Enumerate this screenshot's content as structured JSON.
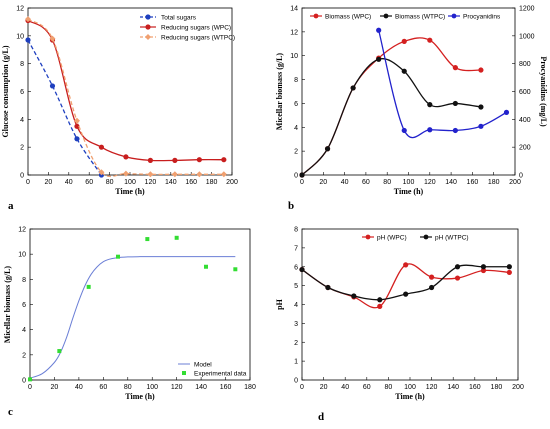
{
  "chart_data": [
    {
      "type": "line",
      "panel_label": "a",
      "xlabel": "Time (h)",
      "ylabel": "Glucose consumption (g/L)",
      "xlim": [
        0,
        200
      ],
      "ylim": [
        0,
        12
      ],
      "xticks": [
        0,
        20,
        40,
        60,
        80,
        100,
        120,
        140,
        160,
        180,
        200
      ],
      "yticks": [
        0,
        2,
        4,
        6,
        8,
        10,
        12
      ],
      "legend_position": "top-right",
      "series": [
        {
          "name": "Total sugars",
          "color": "#1e3fbf",
          "dash": true,
          "marker": "circle",
          "x": [
            0,
            24,
            48,
            72
          ],
          "y": [
            9.7,
            6.4,
            2.6,
            0.0
          ]
        },
        {
          "name": "Reducing sugars (WPC)",
          "color": "#c81e1e",
          "dash": false,
          "marker": "circle",
          "x": [
            0,
            24,
            48,
            72,
            96,
            120,
            144,
            168,
            192
          ],
          "y": [
            11.1,
            9.7,
            3.5,
            2.0,
            1.3,
            1.05,
            1.05,
            1.1,
            1.1
          ]
        },
        {
          "name": "Reducing sugars (WTPC)",
          "color": "#f0a070",
          "dash": true,
          "marker": "diamond",
          "x": [
            0,
            24,
            48,
            72,
            96,
            120,
            144,
            168,
            192
          ],
          "y": [
            11.2,
            9.8,
            3.9,
            0.2,
            0.1,
            0.05,
            0.05,
            0.05,
            0.05
          ]
        }
      ]
    },
    {
      "type": "line",
      "panel_label": "b",
      "xlabel": "Time (h)",
      "ylabel": "Micellar biomass (g/L)",
      "ylabel_right": "Procyanidins (mg/L)",
      "xlim": [
        0,
        200
      ],
      "ylim": [
        0,
        14
      ],
      "ylim_right": [
        0,
        1200
      ],
      "xticks": [
        0,
        20,
        40,
        60,
        80,
        100,
        120,
        140,
        160,
        180,
        200
      ],
      "yticks": [
        0,
        2,
        4,
        6,
        8,
        10,
        12,
        14
      ],
      "yticks_right": [
        0,
        200,
        400,
        600,
        800,
        1000,
        1200
      ],
      "legend_position": "top",
      "series": [
        {
          "name": "Biomass (WPC)",
          "color": "#d42020",
          "axis": "left",
          "x": [
            0,
            24,
            48,
            72,
            96,
            120,
            144,
            168
          ],
          "y": [
            0,
            2.2,
            7.3,
            9.8,
            11.2,
            11.3,
            9.0,
            8.8
          ]
        },
        {
          "name": "Biomass (WTPC)",
          "color": "#111111",
          "axis": "left",
          "x": [
            0,
            24,
            48,
            72,
            96,
            120,
            144,
            168
          ],
          "y": [
            0,
            2.2,
            7.3,
            9.7,
            8.7,
            5.9,
            6.0,
            5.7
          ]
        },
        {
          "name": "Procyanidins",
          "color": "#2222cc",
          "axis": "right",
          "x": [
            72,
            96,
            120,
            144,
            168,
            192
          ],
          "y": [
            1040,
            320,
            325,
            320,
            350,
            450
          ]
        }
      ]
    },
    {
      "type": "scatter",
      "panel_label": "c",
      "xlabel": "Time (h)",
      "ylabel": "Micellar biomass (g/L)",
      "xlim": [
        0,
        180
      ],
      "ylim": [
        0,
        12
      ],
      "xticks": [
        0,
        20,
        40,
        60,
        80,
        100,
        120,
        140,
        160,
        180
      ],
      "yticks": [
        0,
        2,
        4,
        6,
        8,
        10,
        12
      ],
      "legend_position": "bottom-right",
      "series": [
        {
          "name": "Model",
          "color": "#6b7fd6",
          "kind": "curve",
          "x": [
            0,
            10,
            20,
            25,
            30,
            35,
            40,
            45,
            50,
            55,
            60,
            65,
            70,
            80,
            90,
            100,
            120,
            140,
            160,
            168
          ],
          "y": [
            0.15,
            0.5,
            1.4,
            2.2,
            3.4,
            4.9,
            6.3,
            7.5,
            8.4,
            9.0,
            9.4,
            9.6,
            9.7,
            9.78,
            9.8,
            9.8,
            9.8,
            9.8,
            9.8,
            9.8
          ]
        },
        {
          "name": "Experimental data",
          "color": "#33dd33",
          "kind": "points",
          "x": [
            0,
            24,
            48,
            72,
            96,
            120,
            144,
            168
          ],
          "y": [
            0.05,
            2.3,
            7.4,
            9.8,
            11.2,
            11.3,
            9.0,
            8.8
          ]
        }
      ]
    },
    {
      "type": "line",
      "panel_label": "d",
      "xlabel": "Time (h)",
      "ylabel": "pH",
      "xlim": [
        0,
        200
      ],
      "ylim": [
        0,
        8
      ],
      "xticks": [
        0,
        20,
        40,
        60,
        80,
        100,
        120,
        140,
        160,
        180,
        200
      ],
      "yticks": [
        0,
        1,
        2,
        3,
        4,
        5,
        6,
        7,
        8
      ],
      "legend_position": "top",
      "series": [
        {
          "name": "pH (WPC)",
          "color": "#d42020",
          "x": [
            0,
            24,
            48,
            72,
            96,
            120,
            144,
            168,
            192
          ],
          "y": [
            5.85,
            4.9,
            4.4,
            3.9,
            6.1,
            5.45,
            5.4,
            5.8,
            5.7
          ]
        },
        {
          "name": "pH (WTPC)",
          "color": "#111111",
          "x": [
            0,
            24,
            48,
            72,
            96,
            120,
            144,
            168,
            192
          ],
          "y": [
            5.85,
            4.9,
            4.45,
            4.25,
            4.55,
            4.9,
            6.0,
            6.0,
            6.0
          ]
        }
      ]
    }
  ]
}
